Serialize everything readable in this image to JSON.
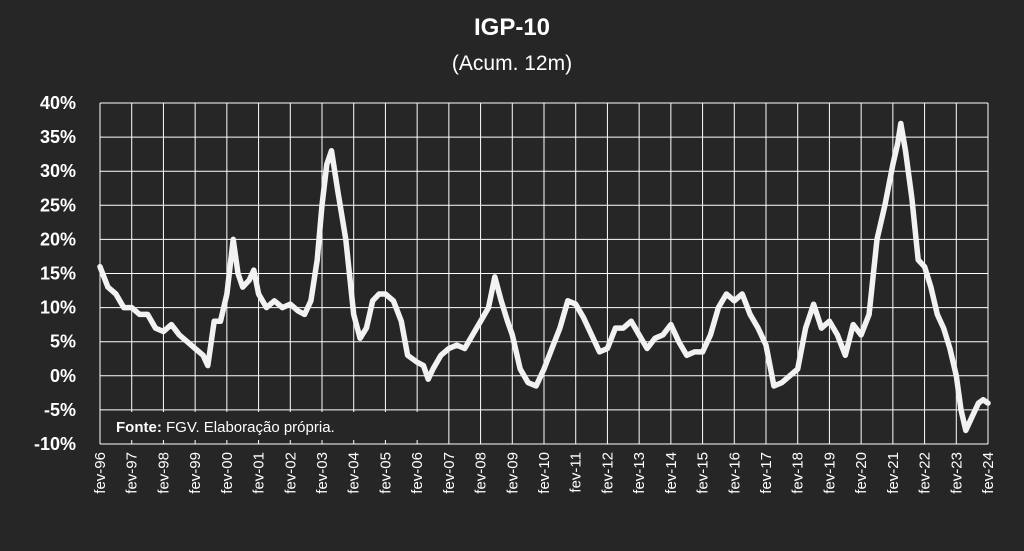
{
  "chart_data": {
    "type": "line",
    "title": "IGP-10",
    "subtitle": "(Acum. 12m)",
    "xlabel": "",
    "ylabel": "",
    "ylim": [
      -10,
      40
    ],
    "yticks": [
      "40%",
      "35%",
      "30%",
      "25%",
      "20%",
      "15%",
      "10%",
      "5%",
      "0%",
      "-5%",
      "-10%"
    ],
    "ytick_values": [
      40,
      35,
      30,
      25,
      20,
      15,
      10,
      5,
      0,
      -5,
      -10
    ],
    "xticks": [
      "fev-96",
      "fev-97",
      "fev-98",
      "fev-99",
      "fev-00",
      "fev-01",
      "fev-02",
      "fev-03",
      "fev-04",
      "fev-05",
      "fev-06",
      "fev-07",
      "fev-08",
      "fev-09",
      "fev-10",
      "fev-11",
      "fev-12",
      "fev-13",
      "fev-14",
      "fev-15",
      "fev-16",
      "fev-17",
      "fev-18",
      "fev-19",
      "fev-20",
      "fev-21",
      "fev-22",
      "fev-23",
      "fev-24"
    ],
    "grid": true,
    "line_color": "#f2f2f2",
    "grid_color": "#ffffff",
    "background": "#262626",
    "source_label": "Fonte:",
    "source_text": " FGV. Elaboração própria.",
    "series": [
      {
        "name": "",
        "points": [
          [
            1996.0,
            16
          ],
          [
            1996.25,
            13
          ],
          [
            1996.5,
            12
          ],
          [
            1996.75,
            10
          ],
          [
            1997.0,
            10
          ],
          [
            1997.25,
            9
          ],
          [
            1997.5,
            9
          ],
          [
            1997.75,
            7
          ],
          [
            1998.0,
            6.5
          ],
          [
            1998.25,
            7.5
          ],
          [
            1998.5,
            6
          ],
          [
            1998.75,
            5
          ],
          [
            1999.0,
            4
          ],
          [
            1999.25,
            3
          ],
          [
            1999.4,
            1.5
          ],
          [
            1999.6,
            8
          ],
          [
            1999.8,
            8
          ],
          [
            2000.0,
            12
          ],
          [
            2000.2,
            20
          ],
          [
            2000.35,
            15
          ],
          [
            2000.5,
            13
          ],
          [
            2000.7,
            14
          ],
          [
            2000.85,
            15.5
          ],
          [
            2001.0,
            12
          ],
          [
            2001.25,
            10
          ],
          [
            2001.5,
            11
          ],
          [
            2001.75,
            10
          ],
          [
            2002.0,
            10.5
          ],
          [
            2002.25,
            9.5
          ],
          [
            2002.45,
            9
          ],
          [
            2002.65,
            11
          ],
          [
            2002.85,
            17
          ],
          [
            2003.0,
            25
          ],
          [
            2003.15,
            31
          ],
          [
            2003.3,
            33
          ],
          [
            2003.5,
            27
          ],
          [
            2003.75,
            20
          ],
          [
            2004.0,
            9
          ],
          [
            2004.2,
            5.5
          ],
          [
            2004.4,
            7
          ],
          [
            2004.6,
            11
          ],
          [
            2004.8,
            12
          ],
          [
            2005.0,
            12
          ],
          [
            2005.25,
            11
          ],
          [
            2005.5,
            8
          ],
          [
            2005.7,
            3
          ],
          [
            2006.0,
            2
          ],
          [
            2006.2,
            1.5
          ],
          [
            2006.35,
            -0.5
          ],
          [
            2006.5,
            1
          ],
          [
            2006.75,
            3
          ],
          [
            2007.0,
            4
          ],
          [
            2007.25,
            4.5
          ],
          [
            2007.5,
            4
          ],
          [
            2007.75,
            6
          ],
          [
            2008.0,
            8
          ],
          [
            2008.25,
            10
          ],
          [
            2008.45,
            14.5
          ],
          [
            2008.65,
            11
          ],
          [
            2008.85,
            8
          ],
          [
            2009.0,
            6
          ],
          [
            2009.25,
            1
          ],
          [
            2009.5,
            -1
          ],
          [
            2009.75,
            -1.5
          ],
          [
            2010.0,
            1
          ],
          [
            2010.25,
            4
          ],
          [
            2010.5,
            7
          ],
          [
            2010.75,
            11
          ],
          [
            2011.0,
            10.5
          ],
          [
            2011.25,
            8.5
          ],
          [
            2011.5,
            6
          ],
          [
            2011.75,
            3.5
          ],
          [
            2012.0,
            4
          ],
          [
            2012.25,
            7
          ],
          [
            2012.5,
            7
          ],
          [
            2012.75,
            8
          ],
          [
            2013.0,
            6
          ],
          [
            2013.25,
            4
          ],
          [
            2013.5,
            5.5
          ],
          [
            2013.75,
            6
          ],
          [
            2014.0,
            7.5
          ],
          [
            2014.25,
            5
          ],
          [
            2014.5,
            3
          ],
          [
            2014.75,
            3.5
          ],
          [
            2015.0,
            3.5
          ],
          [
            2015.25,
            6
          ],
          [
            2015.5,
            10
          ],
          [
            2015.75,
            12
          ],
          [
            2016.0,
            11
          ],
          [
            2016.25,
            12
          ],
          [
            2016.5,
            9
          ],
          [
            2016.75,
            7
          ],
          [
            2017.0,
            4.5
          ],
          [
            2017.25,
            -1.5
          ],
          [
            2017.5,
            -1
          ],
          [
            2017.75,
            0
          ],
          [
            2018.0,
            1
          ],
          [
            2018.25,
            7
          ],
          [
            2018.5,
            10.5
          ],
          [
            2018.75,
            7
          ],
          [
            2019.0,
            8
          ],
          [
            2019.25,
            6
          ],
          [
            2019.5,
            3
          ],
          [
            2019.75,
            7.5
          ],
          [
            2020.0,
            6
          ],
          [
            2020.25,
            9
          ],
          [
            2020.5,
            20
          ],
          [
            2020.75,
            25
          ],
          [
            2021.0,
            31
          ],
          [
            2021.15,
            34
          ],
          [
            2021.25,
            37
          ],
          [
            2021.4,
            33
          ],
          [
            2021.6,
            26
          ],
          [
            2021.8,
            17
          ],
          [
            2022.0,
            16
          ],
          [
            2022.2,
            13
          ],
          [
            2022.4,
            9
          ],
          [
            2022.6,
            7
          ],
          [
            2022.8,
            4
          ],
          [
            2023.0,
            0
          ],
          [
            2023.15,
            -5
          ],
          [
            2023.3,
            -8
          ],
          [
            2023.5,
            -6
          ],
          [
            2023.7,
            -4
          ],
          [
            2023.85,
            -3.5
          ],
          [
            2024.0,
            -4
          ]
        ]
      }
    ]
  }
}
